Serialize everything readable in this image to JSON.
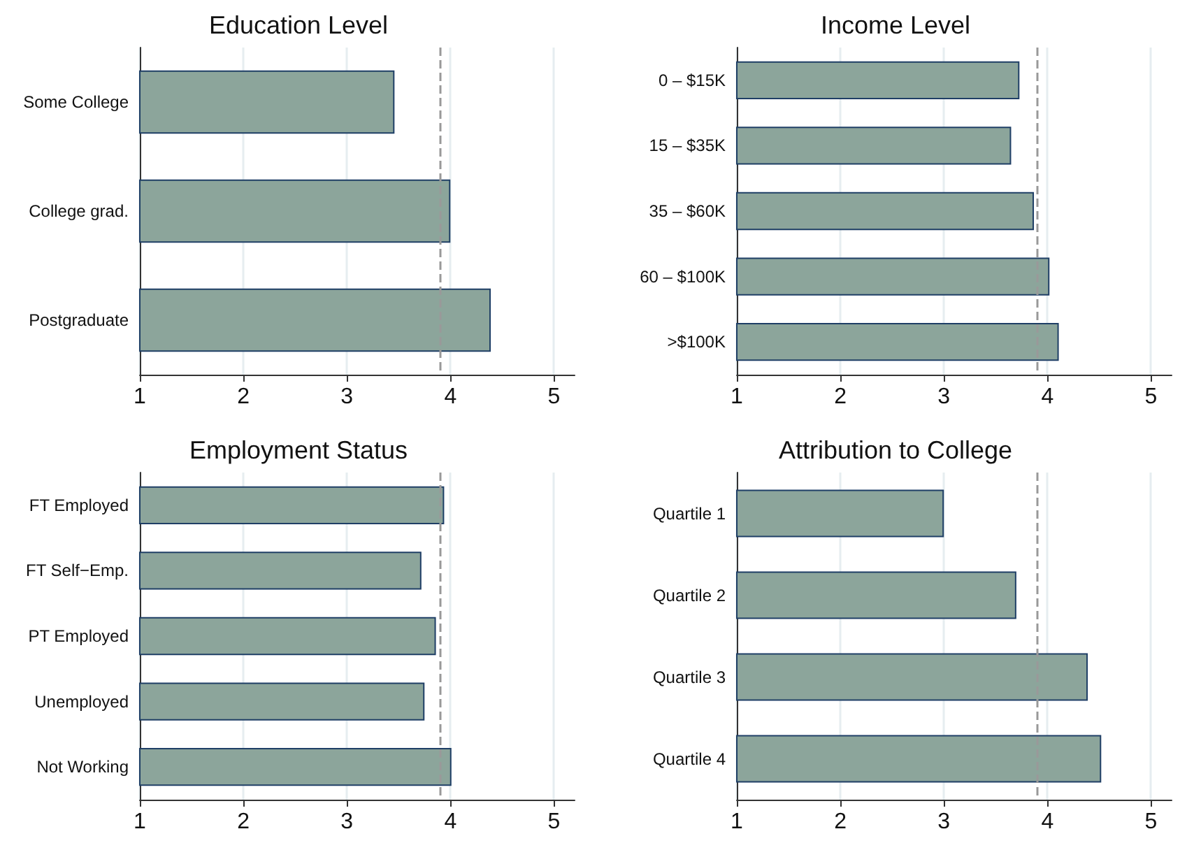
{
  "chart_data": [
    {
      "type": "bar",
      "title": "Education Level",
      "orientation": "horizontal",
      "categories": [
        "Some College",
        "College grad.",
        "Postgraduate"
      ],
      "values": [
        3.46,
        4.0,
        4.39
      ],
      "color": "#8ca59b",
      "xlim": [
        1,
        5.2
      ],
      "xticks": [
        1,
        2,
        3,
        4,
        5
      ],
      "grid": "x",
      "ref_lines": [
        {
          "axis": "x",
          "value": 3.9,
          "color": "#999999",
          "line_style": "dashed"
        }
      ]
    },
    {
      "type": "bar",
      "title": "Income Level",
      "orientation": "horizontal",
      "categories": [
        "0 – $15K",
        "15 – $35K",
        "35 – $60K",
        "60 – $100K",
        ">$100K"
      ],
      "values": [
        3.73,
        3.65,
        3.87,
        4.02,
        4.11
      ],
      "color": "#8ca59b",
      "xlim": [
        1,
        5.2
      ],
      "xticks": [
        1,
        2,
        3,
        4,
        5
      ],
      "grid": "x",
      "ref_lines": [
        {
          "axis": "x",
          "value": 3.9,
          "color": "#999999",
          "line_style": "dashed"
        }
      ]
    },
    {
      "type": "bar",
      "title": "Employment Status",
      "orientation": "horizontal",
      "categories": [
        "FT Employed",
        "FT Self−Emp.",
        "PT Employed",
        "Unemployed",
        "Not Working"
      ],
      "values": [
        3.94,
        3.72,
        3.86,
        3.75,
        4.01
      ],
      "color": "#8ca59b",
      "xlim": [
        1,
        5.2
      ],
      "xticks": [
        1,
        2,
        3,
        4,
        5
      ],
      "grid": "x",
      "ref_lines": [
        {
          "axis": "x",
          "value": 3.9,
          "color": "#999999",
          "line_style": "dashed"
        }
      ]
    },
    {
      "type": "bar",
      "title": "Attribution to College",
      "orientation": "horizontal",
      "categories": [
        "Quartile 1",
        "Quartile 2",
        "Quartile 3",
        "Quartile 4"
      ],
      "values": [
        3.0,
        3.7,
        4.39,
        4.52
      ],
      "color": "#8ca59b",
      "xlim": [
        1,
        5.2
      ],
      "xticks": [
        1,
        2,
        3,
        4,
        5
      ],
      "grid": "x",
      "ref_lines": [
        {
          "axis": "x",
          "value": 3.9,
          "color": "#999999",
          "line_style": "dashed"
        }
      ]
    }
  ]
}
